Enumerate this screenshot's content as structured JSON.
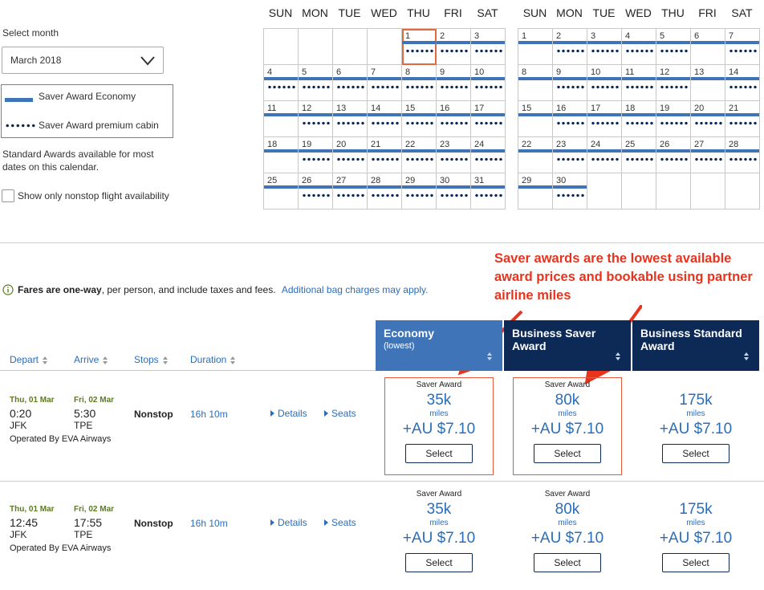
{
  "sidebar": {
    "select_month_label": "Select month",
    "month_value": "March 2018",
    "legend": {
      "economy": "Saver Award Economy",
      "premium": "Saver Award premium cabin"
    },
    "standard_note": "Standard Awards available for most dates on this calendar.",
    "nonstop_label": "Show only nonstop flight availability"
  },
  "calendar": {
    "days_of_week": [
      "SUN",
      "MON",
      "TUE",
      "WED",
      "THU",
      "FRI",
      "SAT"
    ],
    "left_month": {
      "weeks": [
        [
          {
            "d": ""
          },
          {
            "d": ""
          },
          {
            "d": ""
          },
          {
            "d": ""
          },
          {
            "d": "1",
            "eco": true,
            "prem": true,
            "selected": true
          },
          {
            "d": "2",
            "eco": true,
            "prem": true
          },
          {
            "d": "3",
            "eco": true,
            "prem": true
          }
        ],
        [
          {
            "d": "4",
            "eco": true,
            "prem": true
          },
          {
            "d": "5",
            "eco": true,
            "prem": true
          },
          {
            "d": "6",
            "eco": true,
            "prem": true
          },
          {
            "d": "7",
            "eco": true,
            "prem": true
          },
          {
            "d": "8",
            "eco": true,
            "prem": true
          },
          {
            "d": "9",
            "eco": true,
            "prem": true
          },
          {
            "d": "10",
            "eco": true,
            "prem": true
          }
        ],
        [
          {
            "d": "11",
            "eco": true,
            "prem": false
          },
          {
            "d": "12",
            "eco": true,
            "prem": true
          },
          {
            "d": "13",
            "eco": true,
            "prem": true
          },
          {
            "d": "14",
            "eco": true,
            "prem": true
          },
          {
            "d": "15",
            "eco": true,
            "prem": true
          },
          {
            "d": "16",
            "eco": true,
            "prem": true
          },
          {
            "d": "17",
            "eco": true,
            "prem": true
          }
        ],
        [
          {
            "d": "18",
            "eco": true,
            "prem": false
          },
          {
            "d": "19",
            "eco": true,
            "prem": true
          },
          {
            "d": "20",
            "eco": true,
            "prem": true
          },
          {
            "d": "21",
            "eco": true,
            "prem": true
          },
          {
            "d": "22",
            "eco": true,
            "prem": true
          },
          {
            "d": "23",
            "eco": true,
            "prem": true
          },
          {
            "d": "24",
            "eco": true,
            "prem": true
          }
        ],
        [
          {
            "d": "25",
            "eco": true,
            "prem": false
          },
          {
            "d": "26",
            "eco": true,
            "prem": true
          },
          {
            "d": "27",
            "eco": true,
            "prem": true
          },
          {
            "d": "28",
            "eco": true,
            "prem": true
          },
          {
            "d": "29",
            "eco": true,
            "prem": true
          },
          {
            "d": "30",
            "eco": true,
            "prem": true
          },
          {
            "d": "31",
            "eco": true,
            "prem": true
          }
        ]
      ]
    },
    "right_month": {
      "weeks": [
        [
          {
            "d": "1",
            "eco": true,
            "prem": false
          },
          {
            "d": "2",
            "eco": true,
            "prem": true
          },
          {
            "d": "3",
            "eco": true,
            "prem": true
          },
          {
            "d": "4",
            "eco": true,
            "prem": true
          },
          {
            "d": "5",
            "eco": true,
            "prem": true
          },
          {
            "d": "6",
            "eco": true,
            "prem": false
          },
          {
            "d": "7",
            "eco": true,
            "prem": true
          }
        ],
        [
          {
            "d": "8",
            "eco": true,
            "prem": false
          },
          {
            "d": "9",
            "eco": true,
            "prem": true
          },
          {
            "d": "10",
            "eco": true,
            "prem": true
          },
          {
            "d": "11",
            "eco": true,
            "prem": true
          },
          {
            "d": "12",
            "eco": true,
            "prem": true
          },
          {
            "d": "13",
            "eco": true,
            "prem": false
          },
          {
            "d": "14",
            "eco": true,
            "prem": true
          }
        ],
        [
          {
            "d": "15",
            "eco": true,
            "prem": false
          },
          {
            "d": "16",
            "eco": true,
            "prem": true
          },
          {
            "d": "17",
            "eco": true,
            "prem": true
          },
          {
            "d": "18",
            "eco": true,
            "prem": true
          },
          {
            "d": "19",
            "eco": true,
            "prem": true
          },
          {
            "d": "20",
            "eco": true,
            "prem": true
          },
          {
            "d": "21",
            "eco": true,
            "prem": true
          }
        ],
        [
          {
            "d": "22",
            "eco": true,
            "prem": false
          },
          {
            "d": "23",
            "eco": true,
            "prem": true
          },
          {
            "d": "24",
            "eco": true,
            "prem": true
          },
          {
            "d": "25",
            "eco": true,
            "prem": true
          },
          {
            "d": "26",
            "eco": true,
            "prem": true
          },
          {
            "d": "27",
            "eco": true,
            "prem": true
          },
          {
            "d": "28",
            "eco": true,
            "prem": true
          }
        ],
        [
          {
            "d": "29",
            "eco": true,
            "prem": false
          },
          {
            "d": "30",
            "eco": true,
            "prem": true
          },
          {
            "d": ""
          },
          {
            "d": ""
          },
          {
            "d": ""
          },
          {
            "d": ""
          },
          {
            "d": ""
          }
        ]
      ]
    }
  },
  "annotation": "Saver awards are the lowest available award prices and bookable using partner airline miles",
  "info": {
    "bold": "Fares are one-way",
    "rest": ", per person, and include taxes and fees.",
    "link": "Additional bag charges may apply."
  },
  "columns": {
    "depart": "Depart",
    "arrive": "Arrive",
    "stops": "Stops",
    "duration": "Duration"
  },
  "fare_headers": [
    {
      "title": "Economy",
      "sub": "(lowest)",
      "color": "#3f74b9"
    },
    {
      "title": "Business Saver Award",
      "sub": "",
      "color": "#0d2a57"
    },
    {
      "title": "Business Standard Award",
      "sub": "",
      "color": "#0d2a57"
    }
  ],
  "flights": [
    {
      "depart_date": "Thu, 01 Mar",
      "depart_time": "0:20",
      "depart_airport": "JFK",
      "arrive_date": "Fri, 02 Mar",
      "arrive_time": "5:30",
      "arrive_airport": "TPE",
      "operated": "Operated By EVA Airways",
      "stops": "Nonstop",
      "duration": "16h 10m",
      "details": "Details",
      "seats": "Seats",
      "fares": [
        {
          "label": "Saver Award",
          "miles": "35k",
          "miles_word": "miles",
          "tax": "+AU $7.10",
          "button": "Select"
        },
        {
          "label": "Saver Award",
          "miles": "80k",
          "miles_word": "miles",
          "tax": "+AU $7.10",
          "button": "Select"
        },
        {
          "label": "",
          "miles": "175k",
          "miles_word": "miles",
          "tax": "+AU $7.10",
          "button": "Select"
        }
      ]
    },
    {
      "depart_date": "Thu, 01 Mar",
      "depart_time": "12:45",
      "depart_airport": "JFK",
      "arrive_date": "Fri, 02 Mar",
      "arrive_time": "17:55",
      "arrive_airport": "TPE",
      "operated": "Operated By EVA Airways",
      "stops": "Nonstop",
      "duration": "16h 10m",
      "details": "Details",
      "seats": "Seats",
      "fares": [
        {
          "label": "Saver Award",
          "miles": "35k",
          "miles_word": "miles",
          "tax": "+AU $7.10",
          "button": "Select"
        },
        {
          "label": "Saver Award",
          "miles": "80k",
          "miles_word": "miles",
          "tax": "+AU $7.10",
          "button": "Select"
        },
        {
          "label": "",
          "miles": "175k",
          "miles_word": "miles",
          "tax": "+AU $7.10",
          "button": "Select"
        }
      ]
    }
  ]
}
